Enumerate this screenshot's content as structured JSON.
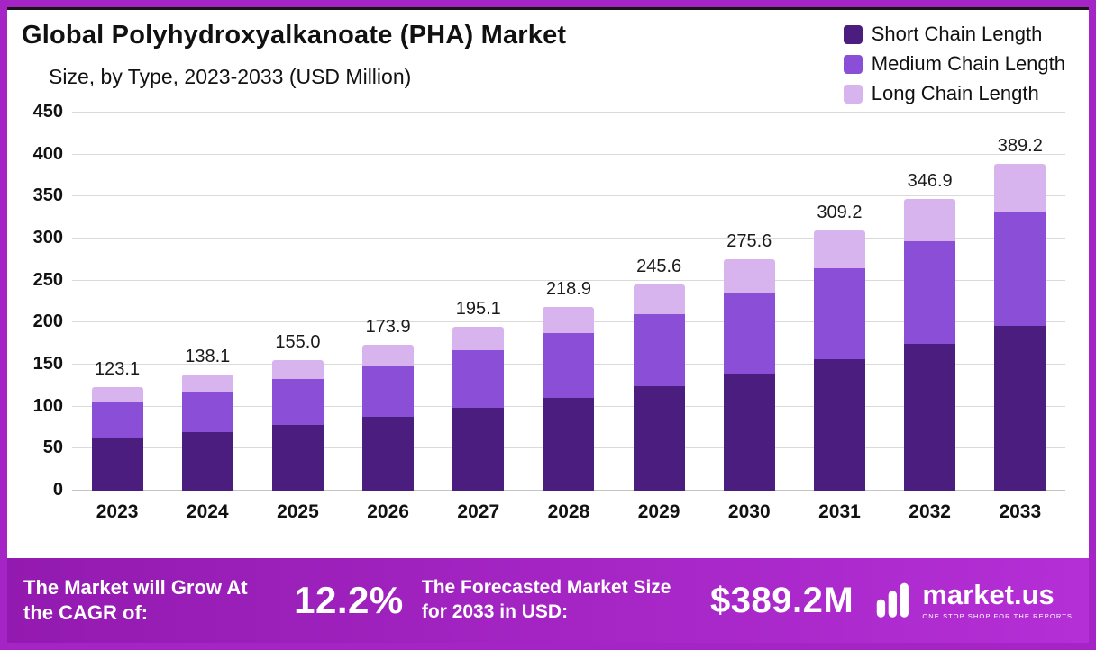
{
  "header": {
    "title_line1": "Global Polyhydroxyalkanoate (PHA) Market",
    "title_line2": "Size, by Type, 2023-2033 (USD Million)"
  },
  "legend": {
    "items": [
      {
        "label": "Short Chain Length",
        "color": "#4a1d7e"
      },
      {
        "label": "Medium Chain Length",
        "color": "#8a4fd6"
      },
      {
        "label": "Long Chain Length",
        "color": "#d8b4ef"
      }
    ]
  },
  "chart_data": {
    "type": "bar",
    "stacked": true,
    "title": "Global Polyhydroxyalkanoate (PHA) Market Size, by Type, 2023-2033 (USD Million)",
    "categories": [
      "2023",
      "2024",
      "2025",
      "2026",
      "2027",
      "2028",
      "2029",
      "2030",
      "2031",
      "2032",
      "2033"
    ],
    "series": [
      {
        "name": "Short Chain Length",
        "color": "#4a1d7e",
        "values": [
          62.0,
          69.7,
          78.2,
          87.8,
          98.5,
          110.5,
          124.0,
          139.1,
          156.1,
          175.1,
          196.5
        ]
      },
      {
        "name": "Medium Chain Length",
        "color": "#8a4fd6",
        "values": [
          43.1,
          48.3,
          54.2,
          60.9,
          68.3,
          76.6,
          86.0,
          96.5,
          108.2,
          121.4,
          136.2
        ]
      },
      {
        "name": "Long Chain Length",
        "color": "#d8b4ef",
        "values": [
          18.0,
          20.1,
          22.6,
          25.2,
          28.3,
          31.8,
          35.6,
          40.0,
          44.9,
          50.4,
          56.5
        ]
      }
    ],
    "totals": [
      123.1,
      138.1,
      155.0,
      173.9,
      195.1,
      218.9,
      245.6,
      275.6,
      309.2,
      346.9,
      389.2
    ],
    "total_labels": [
      "123.1",
      "138.1",
      "155.0",
      "173.9",
      "195.1",
      "218.9",
      "245.6",
      "275.6",
      "309.2",
      "346.9",
      "389.2"
    ],
    "xlabel": "",
    "ylabel": "",
    "ylim": [
      0,
      450
    ],
    "yticks": [
      0,
      50,
      100,
      150,
      200,
      250,
      300,
      350,
      400,
      450
    ],
    "grid": true,
    "legend_position": "top-right"
  },
  "banner": {
    "cagr_label": "The Market will Grow At the CAGR of:",
    "cagr_value": "12.2%",
    "forecast_label": "The Forecasted Market Size for 2033 in USD:",
    "forecast_value": "$389.2M",
    "brand_name": "market.us",
    "brand_tagline": "ONE STOP SHOP FOR THE REPORTS"
  },
  "colors": {
    "frame": "#a524c6",
    "banner_gradient_start": "#931ab0",
    "banner_gradient_end": "#b42fd6",
    "short_chain": "#4a1d7e",
    "medium_chain": "#8a4fd6",
    "long_chain": "#d8b4ef"
  }
}
